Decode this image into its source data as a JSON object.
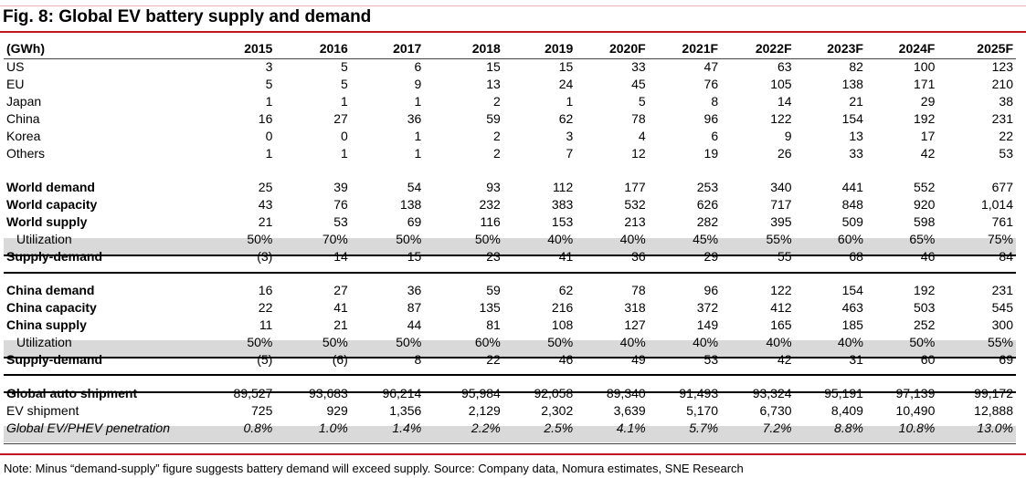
{
  "title": "Fig. 8: Global EV battery supply and demand",
  "unit_label": "(GWh)",
  "years": [
    "2015",
    "2016",
    "2017",
    "2018",
    "2019",
    "2020F",
    "2021F",
    "2022F",
    "2023F",
    "2024F",
    "2025F"
  ],
  "regions": [
    {
      "label": "US",
      "values": [
        "3",
        "5",
        "6",
        "15",
        "15",
        "33",
        "47",
        "63",
        "82",
        "100",
        "123"
      ]
    },
    {
      "label": "EU",
      "values": [
        "5",
        "5",
        "9",
        "13",
        "24",
        "45",
        "76",
        "105",
        "138",
        "171",
        "210"
      ]
    },
    {
      "label": "Japan",
      "values": [
        "1",
        "1",
        "1",
        "2",
        "1",
        "5",
        "8",
        "14",
        "21",
        "29",
        "38"
      ]
    },
    {
      "label": "China",
      "values": [
        "16",
        "27",
        "36",
        "59",
        "62",
        "78",
        "96",
        "122",
        "154",
        "192",
        "231"
      ]
    },
    {
      "label": "Korea",
      "values": [
        "0",
        "0",
        "1",
        "2",
        "3",
        "4",
        "6",
        "9",
        "13",
        "17",
        "22"
      ]
    },
    {
      "label": "Others",
      "values": [
        "1",
        "1",
        "1",
        "2",
        "7",
        "12",
        "19",
        "26",
        "33",
        "42",
        "53"
      ]
    }
  ],
  "world": [
    {
      "label": "World demand",
      "values": [
        "25",
        "39",
        "54",
        "93",
        "112",
        "177",
        "253",
        "340",
        "441",
        "552",
        "677"
      ]
    },
    {
      "label": "World capacity",
      "values": [
        "43",
        "76",
        "138",
        "232",
        "383",
        "532",
        "626",
        "717",
        "848",
        "920",
        "1,014"
      ]
    },
    {
      "label": "World supply",
      "values": [
        "21",
        "53",
        "69",
        "116",
        "153",
        "213",
        "282",
        "395",
        "509",
        "598",
        "761"
      ]
    },
    {
      "label": "Utilization",
      "values": [
        "50%",
        "70%",
        "50%",
        "50%",
        "40%",
        "40%",
        "45%",
        "55%",
        "60%",
        "65%",
        "75%"
      ]
    },
    {
      "label": "Supply-demand",
      "values": [
        "(3)",
        "14",
        "15",
        "23",
        "41",
        "36",
        "29",
        "55",
        "68",
        "46",
        "84"
      ]
    }
  ],
  "china": [
    {
      "label": "China demand",
      "values": [
        "16",
        "27",
        "36",
        "59",
        "62",
        "78",
        "96",
        "122",
        "154",
        "192",
        "231"
      ]
    },
    {
      "label": "China capacity",
      "values": [
        "22",
        "41",
        "87",
        "135",
        "216",
        "318",
        "372",
        "412",
        "463",
        "503",
        "545"
      ]
    },
    {
      "label": "China supply",
      "values": [
        "11",
        "21",
        "44",
        "81",
        "108",
        "127",
        "149",
        "165",
        "185",
        "252",
        "300"
      ]
    },
    {
      "label": "Utilization",
      "values": [
        "50%",
        "50%",
        "50%",
        "60%",
        "50%",
        "40%",
        "40%",
        "40%",
        "40%",
        "50%",
        "55%"
      ]
    },
    {
      "label": "Supply-demand",
      "values": [
        "(5)",
        "(6)",
        "8",
        "22",
        "46",
        "49",
        "53",
        "42",
        "31",
        "60",
        "69"
      ]
    }
  ],
  "auto": [
    {
      "label": "Global auto shipment",
      "values": [
        "89,527",
        "93,683",
        "96,214",
        "95,984",
        "92,058",
        "89,340",
        "91,493",
        "93,324",
        "95,191",
        "97,139",
        "99,172"
      ]
    },
    {
      "label": "EV shipment",
      "values": [
        "725",
        "929",
        "1,356",
        "2,129",
        "2,302",
        "3,639",
        "5,170",
        "6,730",
        "8,409",
        "10,490",
        "12,888"
      ]
    },
    {
      "label": "Global EV/PHEV penetration",
      "values": [
        "0.8%",
        "1.0%",
        "1.4%",
        "2.2%",
        "2.5%",
        "4.1%",
        "5.7%",
        "7.2%",
        "8.8%",
        "10.8%",
        "13.0%"
      ]
    }
  ],
  "note": "Note: Minus “demand-supply” figure suggests battery demand will exceed supply. Source: Company data, Nomura estimates, SNE Research"
}
